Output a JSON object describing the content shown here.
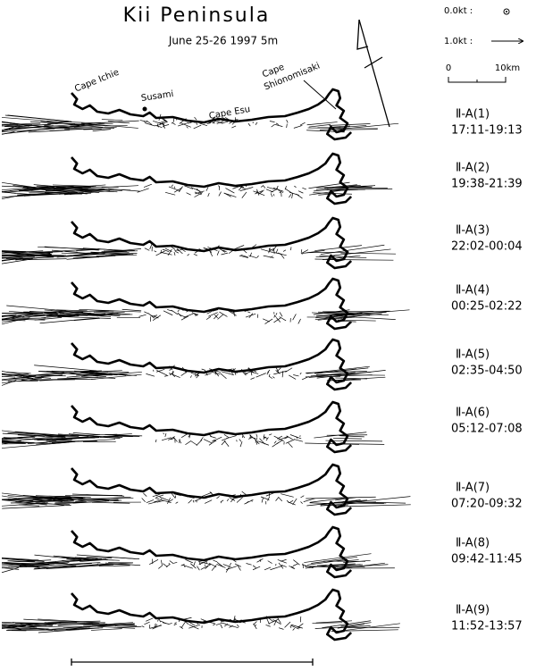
{
  "header": {
    "title": "Kii Peninsula",
    "subtitle": "June 25-26 1997 5m"
  },
  "legend": {
    "zero": "0.0kt :",
    "one": "1.0kt :"
  },
  "scale": {
    "start": "0",
    "end": "10km"
  },
  "places": [
    "Cape Ichie",
    "Susami",
    "Cape Esu"
  ],
  "cape_shionomisaki": [
    "Cape",
    "Shionomisaki"
  ],
  "panels": [
    {
      "label": "Ⅱ-A(1)",
      "time": "17:11-19:13"
    },
    {
      "label": "Ⅱ-A(2)",
      "time": "19:38-21:39"
    },
    {
      "label": "Ⅱ-A(3)",
      "time": "22:02-00:04"
    },
    {
      "label": "Ⅱ-A(4)",
      "time": "00:25-02:22"
    },
    {
      "label": "Ⅱ-A(5)",
      "time": "02:35-04:50"
    },
    {
      "label": "Ⅱ-A(6)",
      "time": "05:12-07:08"
    },
    {
      "label": "Ⅱ-A(7)",
      "time": "07:20-09:32"
    },
    {
      "label": "Ⅱ-A(8)",
      "time": "09:42-11:45"
    },
    {
      "label": "Ⅱ-A(9)",
      "time": "11:52-13:57"
    }
  ]
}
